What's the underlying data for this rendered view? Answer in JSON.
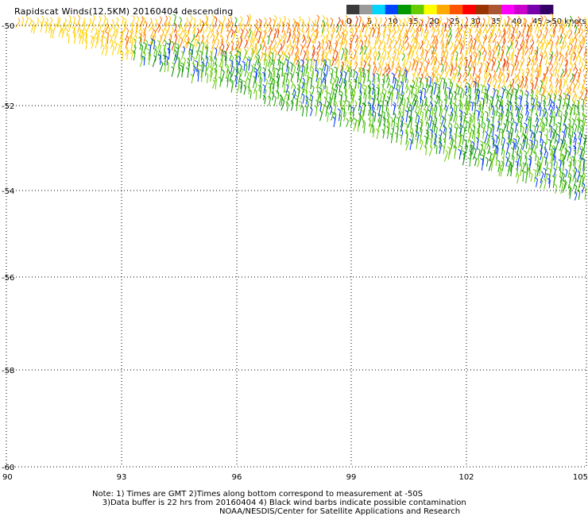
{
  "title": "Rapidscat Winds(12.5KM) 20160404 descending",
  "legend": {
    "colors": [
      "#3a3a3a",
      "#9a9a9a",
      "#00d4ff",
      "#0044ff",
      "#009900",
      "#66cc00",
      "#ffff00",
      "#ffaa00",
      "#ff5500",
      "#ff0000",
      "#993300",
      "#aa5533",
      "#ff00ff",
      "#cc00cc",
      "#7700aa",
      "#330066"
    ],
    "labels": [
      "0",
      "5",
      "10",
      "15",
      "20",
      "25",
      "30",
      "35",
      "40",
      "45",
      ">50 knots"
    ]
  },
  "map": {
    "x_ticks": [
      "90",
      "93",
      "96",
      "99",
      "102",
      "105"
    ],
    "x_values": [
      90,
      93,
      96,
      99,
      102,
      105
    ],
    "y_ticks": [
      "-50",
      "-52",
      "-54",
      "-56",
      "-58",
      "-60"
    ],
    "y_values": [
      -50,
      -52,
      -54,
      -56,
      -58,
      -60
    ],
    "lon_range": [
      90,
      105
    ],
    "lat_range": [
      -50,
      -60
    ],
    "swath_color_ramp": [
      "#ffd000",
      "#ffaa00",
      "#ff6a00",
      "#e03000",
      "#66cc00",
      "#22aa00",
      "#008800",
      "#0033ff"
    ]
  },
  "notes": {
    "line1": "Note: 1) Times are GMT 2)Times along bottom correspond to measurement at -50S",
    "line2": "3)Data buffer is 22 hrs from 20160404 4) Black wind barbs indicate possible contamination",
    "credit": "NOAA/NESDIS/Center for Satellite Applications and Research"
  }
}
